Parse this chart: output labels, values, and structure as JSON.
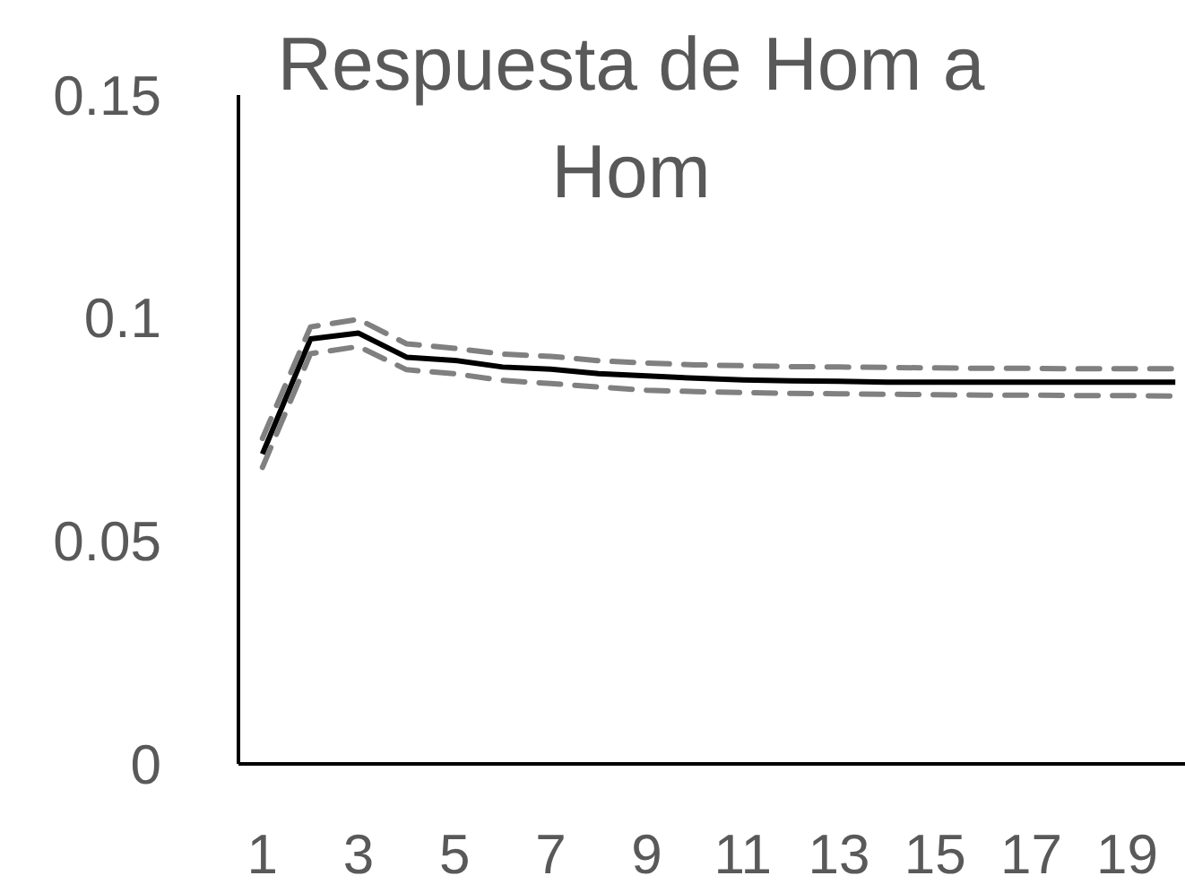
{
  "chart_data": {
    "type": "line",
    "title": "Respuesta de Hom a Hom",
    "categories": [
      "1",
      null,
      "3",
      null,
      "5",
      null,
      "7",
      null,
      "9",
      null,
      "11",
      null,
      "13",
      null,
      "15",
      null,
      "17",
      null,
      "19",
      null
    ],
    "series": [
      {
        "color": "#000000",
        "line_style": "solid",
        "values": [
          0.0695,
          0.0953,
          0.0966,
          0.0912,
          0.0905,
          0.089,
          0.0885,
          0.0875,
          0.087,
          0.0865,
          0.0861,
          0.0859,
          0.0858,
          0.0856,
          0.0856,
          0.0856,
          0.0856,
          0.0856,
          0.0856,
          0.0856
        ]
      },
      {
        "color": "#808080",
        "line_style": "dashed",
        "values": [
          0.073,
          0.098,
          0.0997,
          0.0942,
          0.0932,
          0.0919,
          0.0914,
          0.0904,
          0.0899,
          0.0895,
          0.0893,
          0.0891,
          0.089,
          0.0889,
          0.0888,
          0.0887,
          0.0887,
          0.0886,
          0.0886,
          0.0886
        ]
      },
      {
        "color": "#808080",
        "line_style": "dashed",
        "values": [
          0.0665,
          0.092,
          0.0936,
          0.0884,
          0.0875,
          0.086,
          0.0853,
          0.0845,
          0.0838,
          0.0835,
          0.0833,
          0.0831,
          0.083,
          0.0829,
          0.0828,
          0.0827,
          0.0827,
          0.0826,
          0.0826,
          0.0825
        ]
      }
    ],
    "ylim": [
      0,
      0.15
    ],
    "yticks": [
      0,
      0.05,
      0.1,
      0.15
    ],
    "grid": false,
    "marker": "none"
  }
}
